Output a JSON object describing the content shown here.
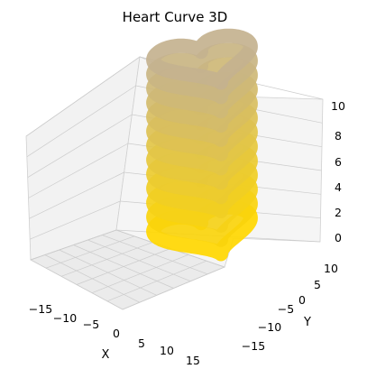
{
  "chart_data": {
    "type": "line3d",
    "title": "Heart Curve 3D",
    "xlabel": "X",
    "ylabel": "Y",
    "zlabel": "",
    "xlim": [
      -18,
      18
    ],
    "ylim": [
      -18,
      13
    ],
    "zlim": [
      0,
      10
    ],
    "x_ticks": [
      "−15",
      "−10",
      "−5",
      "0",
      "5",
      "10",
      "15"
    ],
    "y_ticks": [
      "−15",
      "−10",
      "−5",
      "0",
      "5",
      "10"
    ],
    "z_ticks": [
      "0",
      "2",
      "4",
      "6",
      "8",
      "10"
    ],
    "curve": {
      "x": "16*sin(t)^3",
      "y": "13*cos(t) - 5*cos(2t) - 2*cos(3t) - cos(4t)",
      "z": "linear from 0 to 10 (stacked layers)",
      "layers": 12
    },
    "colors": {
      "bottom": "#ffd700",
      "top": "#c4b28f",
      "pane": "#f2f2f2",
      "grid": "#cccccc"
    },
    "grid": true
  }
}
